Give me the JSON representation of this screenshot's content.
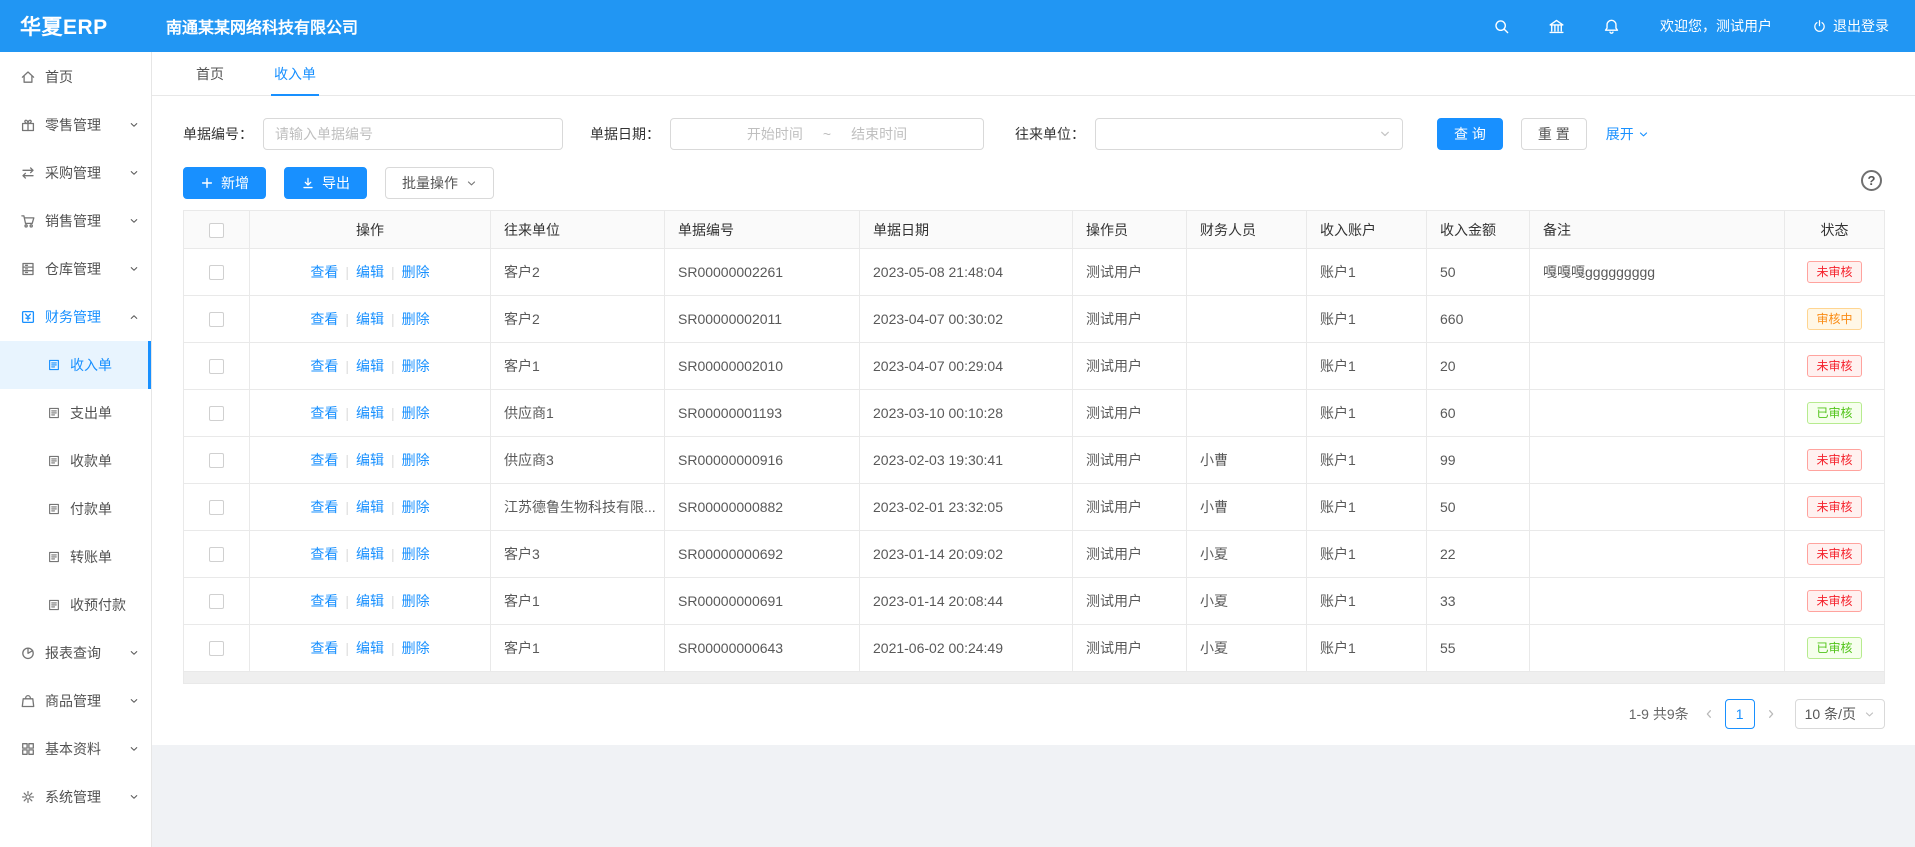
{
  "colors": {
    "accent": "#1890ff",
    "header": "#2196f3",
    "status_red": "#f5222d",
    "status_red_bg": "#fff1f0",
    "status_red_border": "#ffa39e",
    "status_orange": "#fa8c16",
    "status_orange_bg": "#fff7e6",
    "status_orange_border": "#ffd591",
    "status_green": "#52c41a",
    "status_green_bg": "#f6ffed",
    "status_green_border": "#b7eb8f"
  },
  "app": {
    "logo": "华夏ERP",
    "company": "南通某某网络科技有限公司",
    "welcome": "欢迎您，测试用户",
    "logout_label": "退出登录",
    "header_icons": [
      "search-icon",
      "bank-icon",
      "bell-icon"
    ]
  },
  "tabs": [
    {
      "label": "首页",
      "active": false
    },
    {
      "label": "收入单",
      "active": true
    }
  ],
  "sidebar": {
    "items": [
      {
        "label": "首页",
        "icon": "home-icon",
        "type": "top",
        "chevron": null
      },
      {
        "label": "零售管理",
        "icon": "retail-icon",
        "type": "top",
        "chevron": "down"
      },
      {
        "label": "采购管理",
        "icon": "purchase-icon",
        "type": "top",
        "chevron": "down"
      },
      {
        "label": "销售管理",
        "icon": "sales-icon",
        "type": "top",
        "chevron": "down"
      },
      {
        "label": "仓库管理",
        "icon": "warehouse-icon",
        "type": "top",
        "chevron": "down"
      },
      {
        "label": "财务管理",
        "icon": "finance-icon",
        "type": "top",
        "chevron": "up",
        "active": true
      },
      {
        "label": "收入单",
        "icon": "doc-icon",
        "type": "sub",
        "selected": true
      },
      {
        "label": "支出单",
        "icon": "doc-icon",
        "type": "sub"
      },
      {
        "label": "收款单",
        "icon": "doc-icon",
        "type": "sub"
      },
      {
        "label": "付款单",
        "icon": "doc-icon",
        "type": "sub"
      },
      {
        "label": "转账单",
        "icon": "doc-icon",
        "type": "sub"
      },
      {
        "label": "收预付款",
        "icon": "doc-icon",
        "type": "sub"
      },
      {
        "label": "报表查询",
        "icon": "report-icon",
        "type": "top",
        "chevron": "down"
      },
      {
        "label": "商品管理",
        "icon": "goods-icon",
        "type": "top",
        "chevron": "down"
      },
      {
        "label": "基本资料",
        "icon": "basic-icon",
        "type": "top",
        "chevron": "down"
      },
      {
        "label": "系统管理",
        "icon": "system-icon",
        "type": "top",
        "chevron": "down"
      }
    ]
  },
  "filters": {
    "bill_no": {
      "label": "单据编号：",
      "placeholder": "请输入单据编号",
      "value": ""
    },
    "bill_date": {
      "label": "单据日期：",
      "start_placeholder": "开始时间",
      "separator": "~",
      "end_placeholder": "结束时间"
    },
    "partner": {
      "label": "往来单位：",
      "value": ""
    },
    "search_button": "查 询",
    "reset_button": "重 置",
    "expand_link": "展开"
  },
  "toolbar": {
    "add": "新增",
    "export": "导出",
    "batch": "批量操作",
    "help": "?"
  },
  "table": {
    "columns": [
      "操作",
      "往来单位",
      "单据编号",
      "单据日期",
      "操作员",
      "财务人员",
      "收入账户",
      "收入金额",
      "备注",
      "状态"
    ],
    "action_labels": [
      "查看",
      "编辑",
      "删除"
    ],
    "rows": [
      {
        "partner": "客户2",
        "bill_no": "SR00000002261",
        "date": "2023-05-08 21:48:04",
        "operator": "测试用户",
        "finance": "",
        "account": "账户1",
        "amount": "50",
        "remark": "嘎嘎嘎ggggggggg",
        "status": "未审核",
        "status_type": "red"
      },
      {
        "partner": "客户2",
        "bill_no": "SR00000002011",
        "date": "2023-04-07 00:30:02",
        "operator": "测试用户",
        "finance": "",
        "account": "账户1",
        "amount": "660",
        "remark": "",
        "status": "审核中",
        "status_type": "orange"
      },
      {
        "partner": "客户1",
        "bill_no": "SR00000002010",
        "date": "2023-04-07 00:29:04",
        "operator": "测试用户",
        "finance": "",
        "account": "账户1",
        "amount": "20",
        "remark": "",
        "status": "未审核",
        "status_type": "red"
      },
      {
        "partner": "供应商1",
        "bill_no": "SR00000001193",
        "date": "2023-03-10 00:10:28",
        "operator": "测试用户",
        "finance": "",
        "account": "账户1",
        "amount": "60",
        "remark": "",
        "status": "已审核",
        "status_type": "green"
      },
      {
        "partner": "供应商3",
        "bill_no": "SR00000000916",
        "date": "2023-02-03 19:30:41",
        "operator": "测试用户",
        "finance": "小曹",
        "account": "账户1",
        "amount": "99",
        "remark": "",
        "status": "未审核",
        "status_type": "red"
      },
      {
        "partner": "江苏德鲁生物科技有限...",
        "bill_no": "SR00000000882",
        "date": "2023-02-01 23:32:05",
        "operator": "测试用户",
        "finance": "小曹",
        "account": "账户1",
        "amount": "50",
        "remark": "",
        "status": "未审核",
        "status_type": "red"
      },
      {
        "partner": "客户3",
        "bill_no": "SR00000000692",
        "date": "2023-01-14 20:09:02",
        "operator": "测试用户",
        "finance": "小夏",
        "account": "账户1",
        "amount": "22",
        "remark": "",
        "status": "未审核",
        "status_type": "red"
      },
      {
        "partner": "客户1",
        "bill_no": "SR00000000691",
        "date": "2023-01-14 20:08:44",
        "operator": "测试用户",
        "finance": "小夏",
        "account": "账户1",
        "amount": "33",
        "remark": "",
        "status": "未审核",
        "status_type": "red"
      },
      {
        "partner": "客户1",
        "bill_no": "SR00000000643",
        "date": "2021-06-02 00:24:49",
        "operator": "测试用户",
        "finance": "小夏",
        "account": "账户1",
        "amount": "55",
        "remark": "",
        "status": "已审核",
        "status_type": "green"
      }
    ]
  },
  "pagination": {
    "total": "1-9 共9条",
    "page": "1",
    "page_size": "10 条/页"
  }
}
